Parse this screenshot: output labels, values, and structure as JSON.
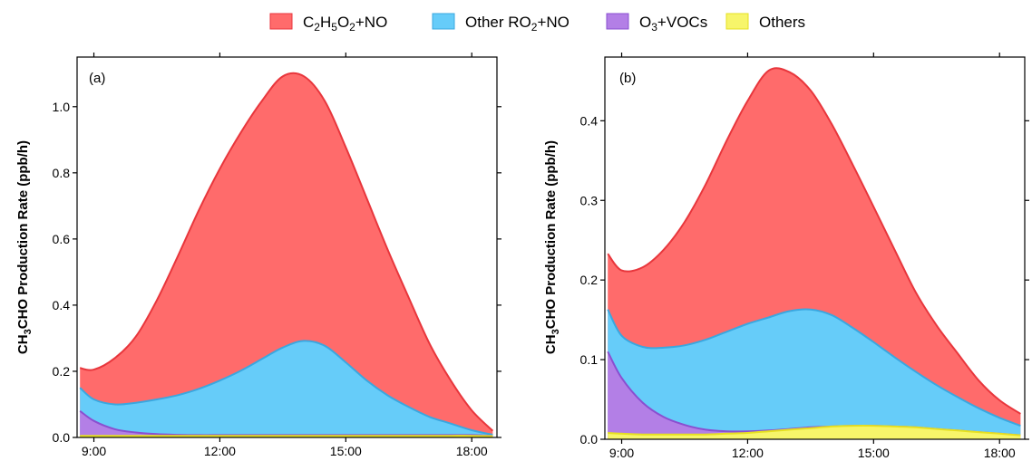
{
  "legend": [
    {
      "label": "C2H5O2+NO",
      "color": "#ff6b6b",
      "edge": "#e8363c"
    },
    {
      "label": "Other RO2+NO",
      "color": "#66ccf9",
      "edge": "#3aa7e0"
    },
    {
      "label": "O3+VOCs",
      "color": "#b37fe6",
      "edge": "#8a4fd0"
    },
    {
      "label": "Others",
      "color": "#f7f56a",
      "edge": "#e6e020"
    }
  ],
  "chart_data": [
    {
      "type": "area",
      "stacked": true,
      "panel_label": "(a)",
      "ylabel": "CH3CHO Production Rate (ppb/h)",
      "x_ticks": [
        "9:00",
        "12:00",
        "15:00",
        "18:00"
      ],
      "y_ticks": [
        "0.0",
        "0.2",
        "0.4",
        "0.6",
        "0.8",
        "1.0"
      ],
      "xlim": [
        8.6,
        18.6
      ],
      "ylim": [
        0,
        1.15
      ],
      "x": [
        8.67,
        9.0,
        9.5,
        10.0,
        10.5,
        11.0,
        11.5,
        12.0,
        12.5,
        13.0,
        13.5,
        14.0,
        14.5,
        15.0,
        15.5,
        16.0,
        16.5,
        17.0,
        17.5,
        18.0,
        18.5
      ],
      "series": [
        {
          "name": "Others",
          "values": [
            0.005,
            0.005,
            0.005,
            0.005,
            0.005,
            0.005,
            0.005,
            0.005,
            0.005,
            0.005,
            0.005,
            0.005,
            0.005,
            0.005,
            0.005,
            0.005,
            0.005,
            0.005,
            0.005,
            0.005,
            0.004
          ]
        },
        {
          "name": "O3+VOCs",
          "values": [
            0.075,
            0.045,
            0.02,
            0.01,
            0.005,
            0.003,
            0.002,
            0.002,
            0.002,
            0.002,
            0.002,
            0.002,
            0.002,
            0.002,
            0.002,
            0.002,
            0.002,
            0.002,
            0.002,
            0.002,
            0.001
          ]
        },
        {
          "name": "Other RO2+NO",
          "values": [
            0.07,
            0.065,
            0.075,
            0.09,
            0.105,
            0.12,
            0.14,
            0.165,
            0.195,
            0.23,
            0.265,
            0.285,
            0.27,
            0.22,
            0.165,
            0.12,
            0.085,
            0.055,
            0.035,
            0.015,
            0.003
          ]
        },
        {
          "name": "C2H5O2+NO",
          "values": [
            0.06,
            0.09,
            0.14,
            0.2,
            0.3,
            0.42,
            0.54,
            0.64,
            0.72,
            0.78,
            0.82,
            0.8,
            0.74,
            0.65,
            0.55,
            0.44,
            0.33,
            0.22,
            0.13,
            0.06,
            0.012
          ]
        }
      ]
    },
    {
      "type": "area",
      "stacked": true,
      "panel_label": "(b)",
      "ylabel": "CH3CHO Production Rate (ppb/h)",
      "x_ticks": [
        "9:00",
        "12:00",
        "15:00",
        "18:00"
      ],
      "y_ticks": [
        "0.0",
        "0.1",
        "0.2",
        "0.3",
        "0.4"
      ],
      "xlim": [
        8.6,
        18.6
      ],
      "ylim": [
        0,
        0.48
      ],
      "x": [
        8.67,
        9.0,
        9.5,
        10.0,
        10.5,
        11.0,
        11.5,
        12.0,
        12.5,
        13.0,
        13.5,
        14.0,
        14.5,
        15.0,
        15.5,
        16.0,
        16.5,
        17.0,
        17.5,
        18.0,
        18.5
      ],
      "series": [
        {
          "name": "Others",
          "values": [
            0.008,
            0.007,
            0.006,
            0.006,
            0.006,
            0.006,
            0.007,
            0.008,
            0.01,
            0.012,
            0.014,
            0.016,
            0.017,
            0.017,
            0.016,
            0.015,
            0.013,
            0.011,
            0.009,
            0.007,
            0.005
          ]
        },
        {
          "name": "O3+VOCs",
          "values": [
            0.102,
            0.07,
            0.04,
            0.022,
            0.012,
            0.006,
            0.003,
            0.002,
            0.001,
            0.001,
            0.001,
            0.0,
            0.0,
            0.0,
            0.0,
            0.0,
            0.0,
            0.0,
            0.0,
            0.0,
            0.0
          ]
        },
        {
          "name": "Other RO2+NO",
          "values": [
            0.053,
            0.053,
            0.07,
            0.087,
            0.1,
            0.113,
            0.125,
            0.135,
            0.142,
            0.148,
            0.148,
            0.14,
            0.123,
            0.105,
            0.087,
            0.07,
            0.055,
            0.042,
            0.03,
            0.02,
            0.012
          ]
        },
        {
          "name": "C2H5O2+NO",
          "values": [
            0.07,
            0.082,
            0.1,
            0.123,
            0.155,
            0.195,
            0.24,
            0.28,
            0.31,
            0.3,
            0.275,
            0.24,
            0.205,
            0.17,
            0.135,
            0.1,
            0.075,
            0.055,
            0.035,
            0.022,
            0.015
          ]
        }
      ]
    }
  ]
}
